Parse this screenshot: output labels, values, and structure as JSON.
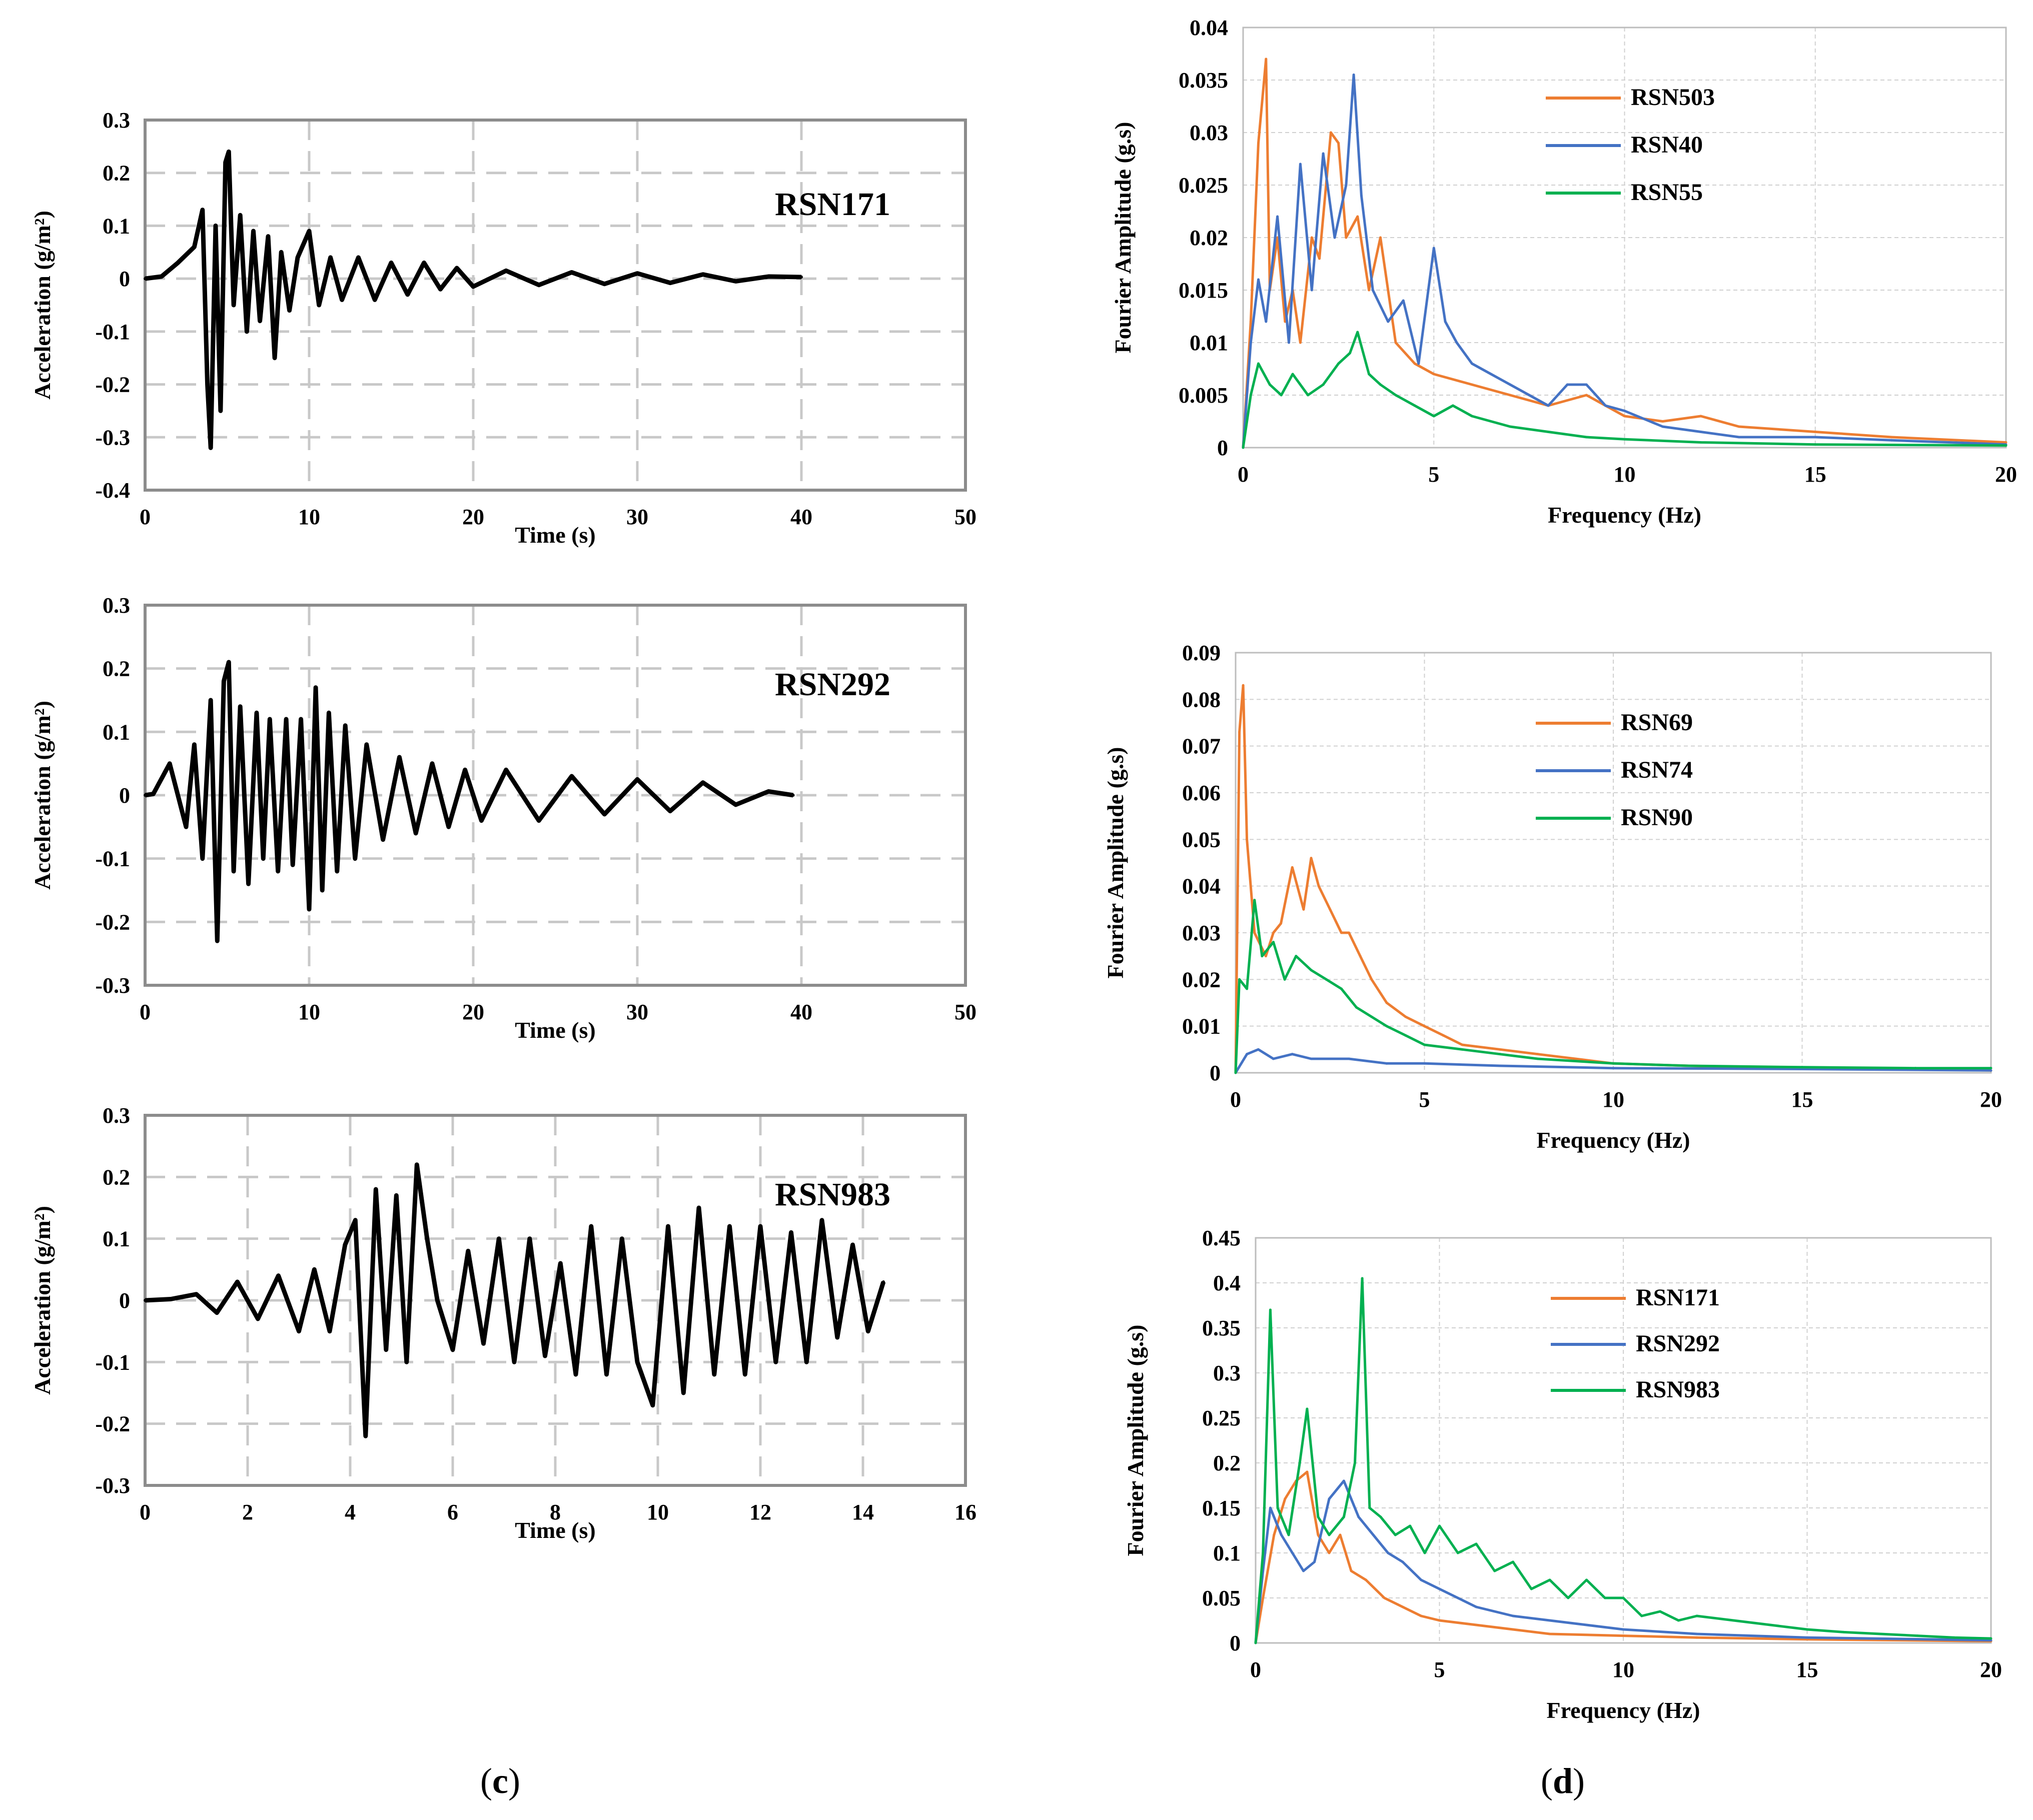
{
  "figure": {
    "left_label": "c",
    "right_label": "d"
  },
  "colors": {
    "orange": "#ED7D31",
    "blue": "#4472C4",
    "green": "#00B050",
    "black": "#000000",
    "grid": "#d0d0d0"
  },
  "chart_data": [
    {
      "id": "acc1",
      "type": "line",
      "title": "RSN171",
      "xlabel": "Time (s)",
      "ylabel": "Acceleration (g/m²)",
      "xlim": [
        0,
        50
      ],
      "ylim": [
        -0.4,
        0.3
      ],
      "xticks": [
        0,
        10,
        20,
        30,
        40,
        50
      ],
      "yticks": [
        -0.4,
        -0.3,
        -0.2,
        -0.1,
        0,
        0.1,
        0.2,
        0.3
      ],
      "series": [
        {
          "name": "RSN171",
          "color": "black",
          "x": [
            0,
            1,
            2,
            3,
            3.5,
            3.8,
            4.0,
            4.3,
            4.6,
            4.9,
            5.1,
            5.4,
            5.8,
            6.2,
            6.6,
            7.0,
            7.5,
            7.9,
            8.3,
            8.8,
            9.3,
            10.0,
            10.6,
            11.3,
            12.0,
            13.0,
            14.0,
            15.0,
            16.0,
            17.0,
            18.0,
            19.0,
            20.0,
            22.0,
            24.0,
            26.0,
            28.0,
            30.0,
            32.0,
            34.0,
            36.0,
            38.0,
            40.0
          ],
          "y": [
            0,
            0.004,
            0.03,
            0.06,
            0.13,
            -0.2,
            -0.32,
            0.1,
            -0.25,
            0.22,
            0.24,
            -0.05,
            0.12,
            -0.1,
            0.09,
            -0.08,
            0.08,
            -0.15,
            0.05,
            -0.06,
            0.04,
            0.09,
            -0.05,
            0.04,
            -0.04,
            0.04,
            -0.04,
            0.03,
            -0.03,
            0.03,
            -0.02,
            0.02,
            -0.015,
            0.015,
            -0.012,
            0.012,
            -0.01,
            0.01,
            -0.008,
            0.008,
            -0.005,
            0.004,
            0.003
          ]
        }
      ]
    },
    {
      "id": "acc2",
      "type": "line",
      "title": "RSN292",
      "xlabel": "Time (s)",
      "ylabel": "Acceleration (g/m²)",
      "xlim": [
        0,
        50
      ],
      "ylim": [
        -0.3,
        0.3
      ],
      "xticks": [
        0,
        10,
        20,
        30,
        40,
        50
      ],
      "yticks": [
        -0.3,
        -0.2,
        -0.1,
        0,
        0.1,
        0.2,
        0.3
      ],
      "series": [
        {
          "name": "RSN292",
          "color": "black",
          "x": [
            0,
            0.5,
            1.5,
            2.5,
            3.0,
            3.5,
            4.0,
            4.4,
            4.8,
            5.1,
            5.4,
            5.8,
            6.3,
            6.8,
            7.2,
            7.6,
            8.1,
            8.6,
            9.0,
            9.5,
            10.0,
            10.4,
            10.8,
            11.2,
            11.7,
            12.2,
            12.8,
            13.5,
            14.5,
            15.5,
            16.5,
            17.5,
            18.5,
            19.5,
            20.5,
            22.0,
            24.0,
            26.0,
            28.0,
            30.0,
            32.0,
            34.0,
            36.0,
            38.0,
            39.5
          ],
          "y": [
            0,
            0.002,
            0.05,
            -0.05,
            0.08,
            -0.1,
            0.15,
            -0.23,
            0.18,
            0.21,
            -0.12,
            0.14,
            -0.14,
            0.13,
            -0.1,
            0.12,
            -0.12,
            0.12,
            -0.11,
            0.12,
            -0.18,
            0.17,
            -0.15,
            0.13,
            -0.12,
            0.11,
            -0.1,
            0.08,
            -0.07,
            0.06,
            -0.06,
            0.05,
            -0.05,
            0.04,
            -0.04,
            0.04,
            -0.04,
            0.03,
            -0.03,
            0.025,
            -0.025,
            0.02,
            -0.015,
            0.006,
            0.0
          ]
        }
      ]
    },
    {
      "id": "acc3",
      "type": "line",
      "title": "RSN983",
      "xlabel": "Time (s)",
      "ylabel": "Acceleration (g/m²)",
      "xlim": [
        0,
        16
      ],
      "ylim": [
        -0.3,
        0.3
      ],
      "xticks": [
        0,
        2,
        4,
        6,
        8,
        10,
        12,
        14,
        16
      ],
      "yticks": [
        -0.3,
        -0.2,
        -0.1,
        0,
        0.1,
        0.2,
        0.3
      ],
      "series": [
        {
          "name": "RSN983",
          "color": "black",
          "x": [
            0,
            0.5,
            1.0,
            1.4,
            1.8,
            2.2,
            2.6,
            3.0,
            3.3,
            3.6,
            3.9,
            4.1,
            4.3,
            4.5,
            4.7,
            4.9,
            5.1,
            5.3,
            5.5,
            5.7,
            6.0,
            6.3,
            6.6,
            6.9,
            7.2,
            7.5,
            7.8,
            8.1,
            8.4,
            8.7,
            9.0,
            9.3,
            9.6,
            9.9,
            10.2,
            10.5,
            10.8,
            11.1,
            11.4,
            11.7,
            12.0,
            12.3,
            12.6,
            12.9,
            13.2,
            13.5,
            13.8,
            14.1,
            14.4
          ],
          "y": [
            0,
            0.002,
            0.01,
            -0.02,
            0.03,
            -0.03,
            0.04,
            -0.05,
            0.05,
            -0.05,
            0.09,
            0.13,
            -0.22,
            0.18,
            -0.08,
            0.17,
            -0.1,
            0.22,
            0.1,
            0.0,
            -0.08,
            0.08,
            -0.07,
            0.1,
            -0.1,
            0.1,
            -0.09,
            0.06,
            -0.12,
            0.12,
            -0.12,
            0.1,
            -0.1,
            -0.17,
            0.12,
            -0.15,
            0.15,
            -0.12,
            0.12,
            -0.12,
            0.12,
            -0.1,
            0.11,
            -0.1,
            0.13,
            -0.06,
            0.09,
            -0.05,
            0.03
          ]
        }
      ]
    },
    {
      "id": "fas1",
      "type": "line",
      "xlabel": "Frequency (Hz)",
      "ylabel": "Fourier Amplitude (g.s)",
      "xlim": [
        0,
        20
      ],
      "ylim": [
        0,
        0.04
      ],
      "xticks": [
        0,
        5,
        10,
        15,
        20
      ],
      "yticks": [
        0,
        0.005,
        0.01,
        0.015,
        0.02,
        0.025,
        0.03,
        0.035,
        0.04
      ],
      "legend": [
        "RSN503",
        "RSN40",
        "RSN55"
      ],
      "series": [
        {
          "name": "RSN503",
          "color": "orange",
          "x": [
            0,
            0.2,
            0.4,
            0.6,
            0.7,
            0.9,
            1.1,
            1.3,
            1.5,
            1.8,
            2.0,
            2.3,
            2.5,
            2.7,
            3.0,
            3.3,
            3.6,
            4.0,
            4.5,
            5.0,
            6.0,
            7.0,
            8.0,
            9.0,
            10.0,
            11.0,
            12.0,
            13.0,
            15.0,
            17.0,
            20.0
          ],
          "y": [
            0,
            0.012,
            0.029,
            0.037,
            0.015,
            0.02,
            0.012,
            0.015,
            0.01,
            0.02,
            0.018,
            0.03,
            0.029,
            0.02,
            0.022,
            0.015,
            0.02,
            0.01,
            0.008,
            0.007,
            0.006,
            0.005,
            0.004,
            0.005,
            0.003,
            0.0025,
            0.003,
            0.002,
            0.0015,
            0.001,
            0.0005
          ]
        },
        {
          "name": "RSN40",
          "color": "blue",
          "x": [
            0,
            0.2,
            0.4,
            0.6,
            0.9,
            1.2,
            1.5,
            1.8,
            2.1,
            2.4,
            2.7,
            2.9,
            3.1,
            3.4,
            3.8,
            4.2,
            4.6,
            5.0,
            5.3,
            5.6,
            6.0,
            6.5,
            7.0,
            7.5,
            8.0,
            8.5,
            9.0,
            9.5,
            10.0,
            11.0,
            12.0,
            13.0,
            15.0,
            17.0,
            20.0
          ],
          "y": [
            0,
            0.01,
            0.016,
            0.012,
            0.022,
            0.01,
            0.027,
            0.015,
            0.028,
            0.02,
            0.025,
            0.0355,
            0.024,
            0.015,
            0.012,
            0.014,
            0.008,
            0.019,
            0.012,
            0.01,
            0.008,
            0.007,
            0.006,
            0.005,
            0.004,
            0.006,
            0.006,
            0.004,
            0.0035,
            0.002,
            0.0015,
            0.001,
            0.001,
            0.0007,
            0.0003
          ]
        },
        {
          "name": "RSN55",
          "color": "green",
          "x": [
            0,
            0.2,
            0.4,
            0.7,
            1.0,
            1.3,
            1.7,
            2.1,
            2.5,
            2.8,
            3.0,
            3.3,
            3.6,
            4.0,
            4.5,
            5.0,
            5.5,
            6.0,
            7.0,
            8.0,
            9.0,
            10.0,
            12.0,
            15.0,
            20.0
          ],
          "y": [
            0,
            0.005,
            0.008,
            0.006,
            0.005,
            0.007,
            0.005,
            0.006,
            0.008,
            0.009,
            0.011,
            0.007,
            0.006,
            0.005,
            0.004,
            0.003,
            0.004,
            0.003,
            0.002,
            0.0015,
            0.001,
            0.0008,
            0.0005,
            0.0003,
            0.0002
          ]
        }
      ]
    },
    {
      "id": "fas2",
      "type": "line",
      "xlabel": "Frequency (Hz)",
      "ylabel": "Fourier Amplitude (g.s)",
      "xlim": [
        0,
        20
      ],
      "ylim": [
        0,
        0.09
      ],
      "xticks": [
        0,
        5,
        10,
        15,
        20
      ],
      "yticks": [
        0,
        0.01,
        0.02,
        0.03,
        0.04,
        0.05,
        0.06,
        0.07,
        0.08,
        0.09
      ],
      "legend": [
        "RSN69",
        "RSN74",
        "RSN90"
      ],
      "series": [
        {
          "name": "RSN69",
          "color": "orange",
          "x": [
            0,
            0.1,
            0.2,
            0.3,
            0.5,
            0.8,
            1.0,
            1.2,
            1.5,
            1.8,
            2.0,
            2.2,
            2.5,
            2.8,
            3.0,
            3.3,
            3.6,
            4.0,
            4.5,
            5.0,
            5.5,
            6.0,
            7.0,
            8.0,
            9.0,
            10.0,
            12.0,
            15.0,
            20.0
          ],
          "y": [
            0,
            0.073,
            0.083,
            0.05,
            0.03,
            0.025,
            0.03,
            0.032,
            0.044,
            0.035,
            0.046,
            0.04,
            0.035,
            0.03,
            0.03,
            0.025,
            0.02,
            0.015,
            0.012,
            0.01,
            0.008,
            0.006,
            0.005,
            0.004,
            0.003,
            0.002,
            0.0015,
            0.001,
            0.0005
          ]
        },
        {
          "name": "RSN74",
          "color": "blue",
          "x": [
            0,
            0.3,
            0.6,
            1.0,
            1.5,
            2.0,
            3.0,
            4.0,
            5.0,
            7.0,
            10.0,
            15.0,
            20.0
          ],
          "y": [
            0,
            0.004,
            0.005,
            0.003,
            0.004,
            0.003,
            0.003,
            0.002,
            0.002,
            0.0015,
            0.001,
            0.0008,
            0.0005
          ]
        },
        {
          "name": "RSN90",
          "color": "green",
          "x": [
            0,
            0.1,
            0.3,
            0.5,
            0.7,
            1.0,
            1.3,
            1.6,
            2.0,
            2.4,
            2.8,
            3.2,
            3.6,
            4.0,
            4.5,
            5.0,
            6.0,
            7.0,
            8.0,
            10.0,
            12.0,
            15.0,
            18.0,
            20.0
          ],
          "y": [
            0,
            0.02,
            0.018,
            0.037,
            0.025,
            0.028,
            0.02,
            0.025,
            0.022,
            0.02,
            0.018,
            0.014,
            0.012,
            0.01,
            0.008,
            0.006,
            0.005,
            0.004,
            0.003,
            0.002,
            0.0015,
            0.0012,
            0.001,
            0.001
          ]
        }
      ]
    },
    {
      "id": "fas3",
      "type": "line",
      "xlabel": "Frequency (Hz)",
      "ylabel": "Fourier Amplitude (g.s)",
      "xlim": [
        0,
        20
      ],
      "ylim": [
        0,
        0.45
      ],
      "xticks": [
        0,
        5,
        10,
        15,
        20
      ],
      "yticks": [
        0,
        0.05,
        0.1,
        0.15,
        0.2,
        0.25,
        0.3,
        0.35,
        0.4,
        0.45
      ],
      "legend": [
        "RSN171",
        "RSN292",
        "RSN983"
      ],
      "series": [
        {
          "name": "RSN171",
          "color": "orange",
          "x": [
            0,
            0.2,
            0.5,
            0.8,
            1.1,
            1.4,
            1.7,
            2.0,
            2.3,
            2.6,
            3.0,
            3.5,
            4.0,
            4.5,
            5.0,
            6.0,
            7.0,
            8.0,
            10.0,
            12.0,
            15.0,
            20.0
          ],
          "y": [
            0,
            0.05,
            0.12,
            0.16,
            0.18,
            0.19,
            0.12,
            0.1,
            0.12,
            0.08,
            0.07,
            0.05,
            0.04,
            0.03,
            0.025,
            0.02,
            0.015,
            0.01,
            0.008,
            0.006,
            0.004,
            0.002
          ]
        },
        {
          "name": "RSN292",
          "color": "blue",
          "x": [
            0,
            0.2,
            0.4,
            0.7,
            1.0,
            1.3,
            1.6,
            2.0,
            2.4,
            2.8,
            3.2,
            3.6,
            4.0,
            4.5,
            5.0,
            5.5,
            6.0,
            7.0,
            8.0,
            9.0,
            10.0,
            12.0,
            15.0,
            20.0
          ],
          "y": [
            0,
            0.08,
            0.15,
            0.12,
            0.1,
            0.08,
            0.09,
            0.16,
            0.18,
            0.14,
            0.12,
            0.1,
            0.09,
            0.07,
            0.06,
            0.05,
            0.04,
            0.03,
            0.025,
            0.02,
            0.015,
            0.01,
            0.006,
            0.003
          ]
        },
        {
          "name": "RSN983",
          "color": "green",
          "x": [
            0,
            0.2,
            0.4,
            0.6,
            0.9,
            1.2,
            1.4,
            1.7,
            2.0,
            2.4,
            2.7,
            2.9,
            3.1,
            3.4,
            3.8,
            4.2,
            4.6,
            5.0,
            5.5,
            6.0,
            6.5,
            7.0,
            7.5,
            8.0,
            8.5,
            9.0,
            9.5,
            10.0,
            10.5,
            11.0,
            11.5,
            12.0,
            13.0,
            14.0,
            15.0,
            16.0,
            17.0,
            18.0,
            19.0,
            20.0
          ],
          "y": [
            0,
            0.1,
            0.37,
            0.15,
            0.12,
            0.2,
            0.26,
            0.14,
            0.12,
            0.14,
            0.2,
            0.405,
            0.15,
            0.14,
            0.12,
            0.13,
            0.1,
            0.13,
            0.1,
            0.11,
            0.08,
            0.09,
            0.06,
            0.07,
            0.05,
            0.07,
            0.05,
            0.05,
            0.03,
            0.035,
            0.025,
            0.03,
            0.025,
            0.02,
            0.015,
            0.012,
            0.01,
            0.008,
            0.006,
            0.005
          ]
        }
      ]
    }
  ]
}
